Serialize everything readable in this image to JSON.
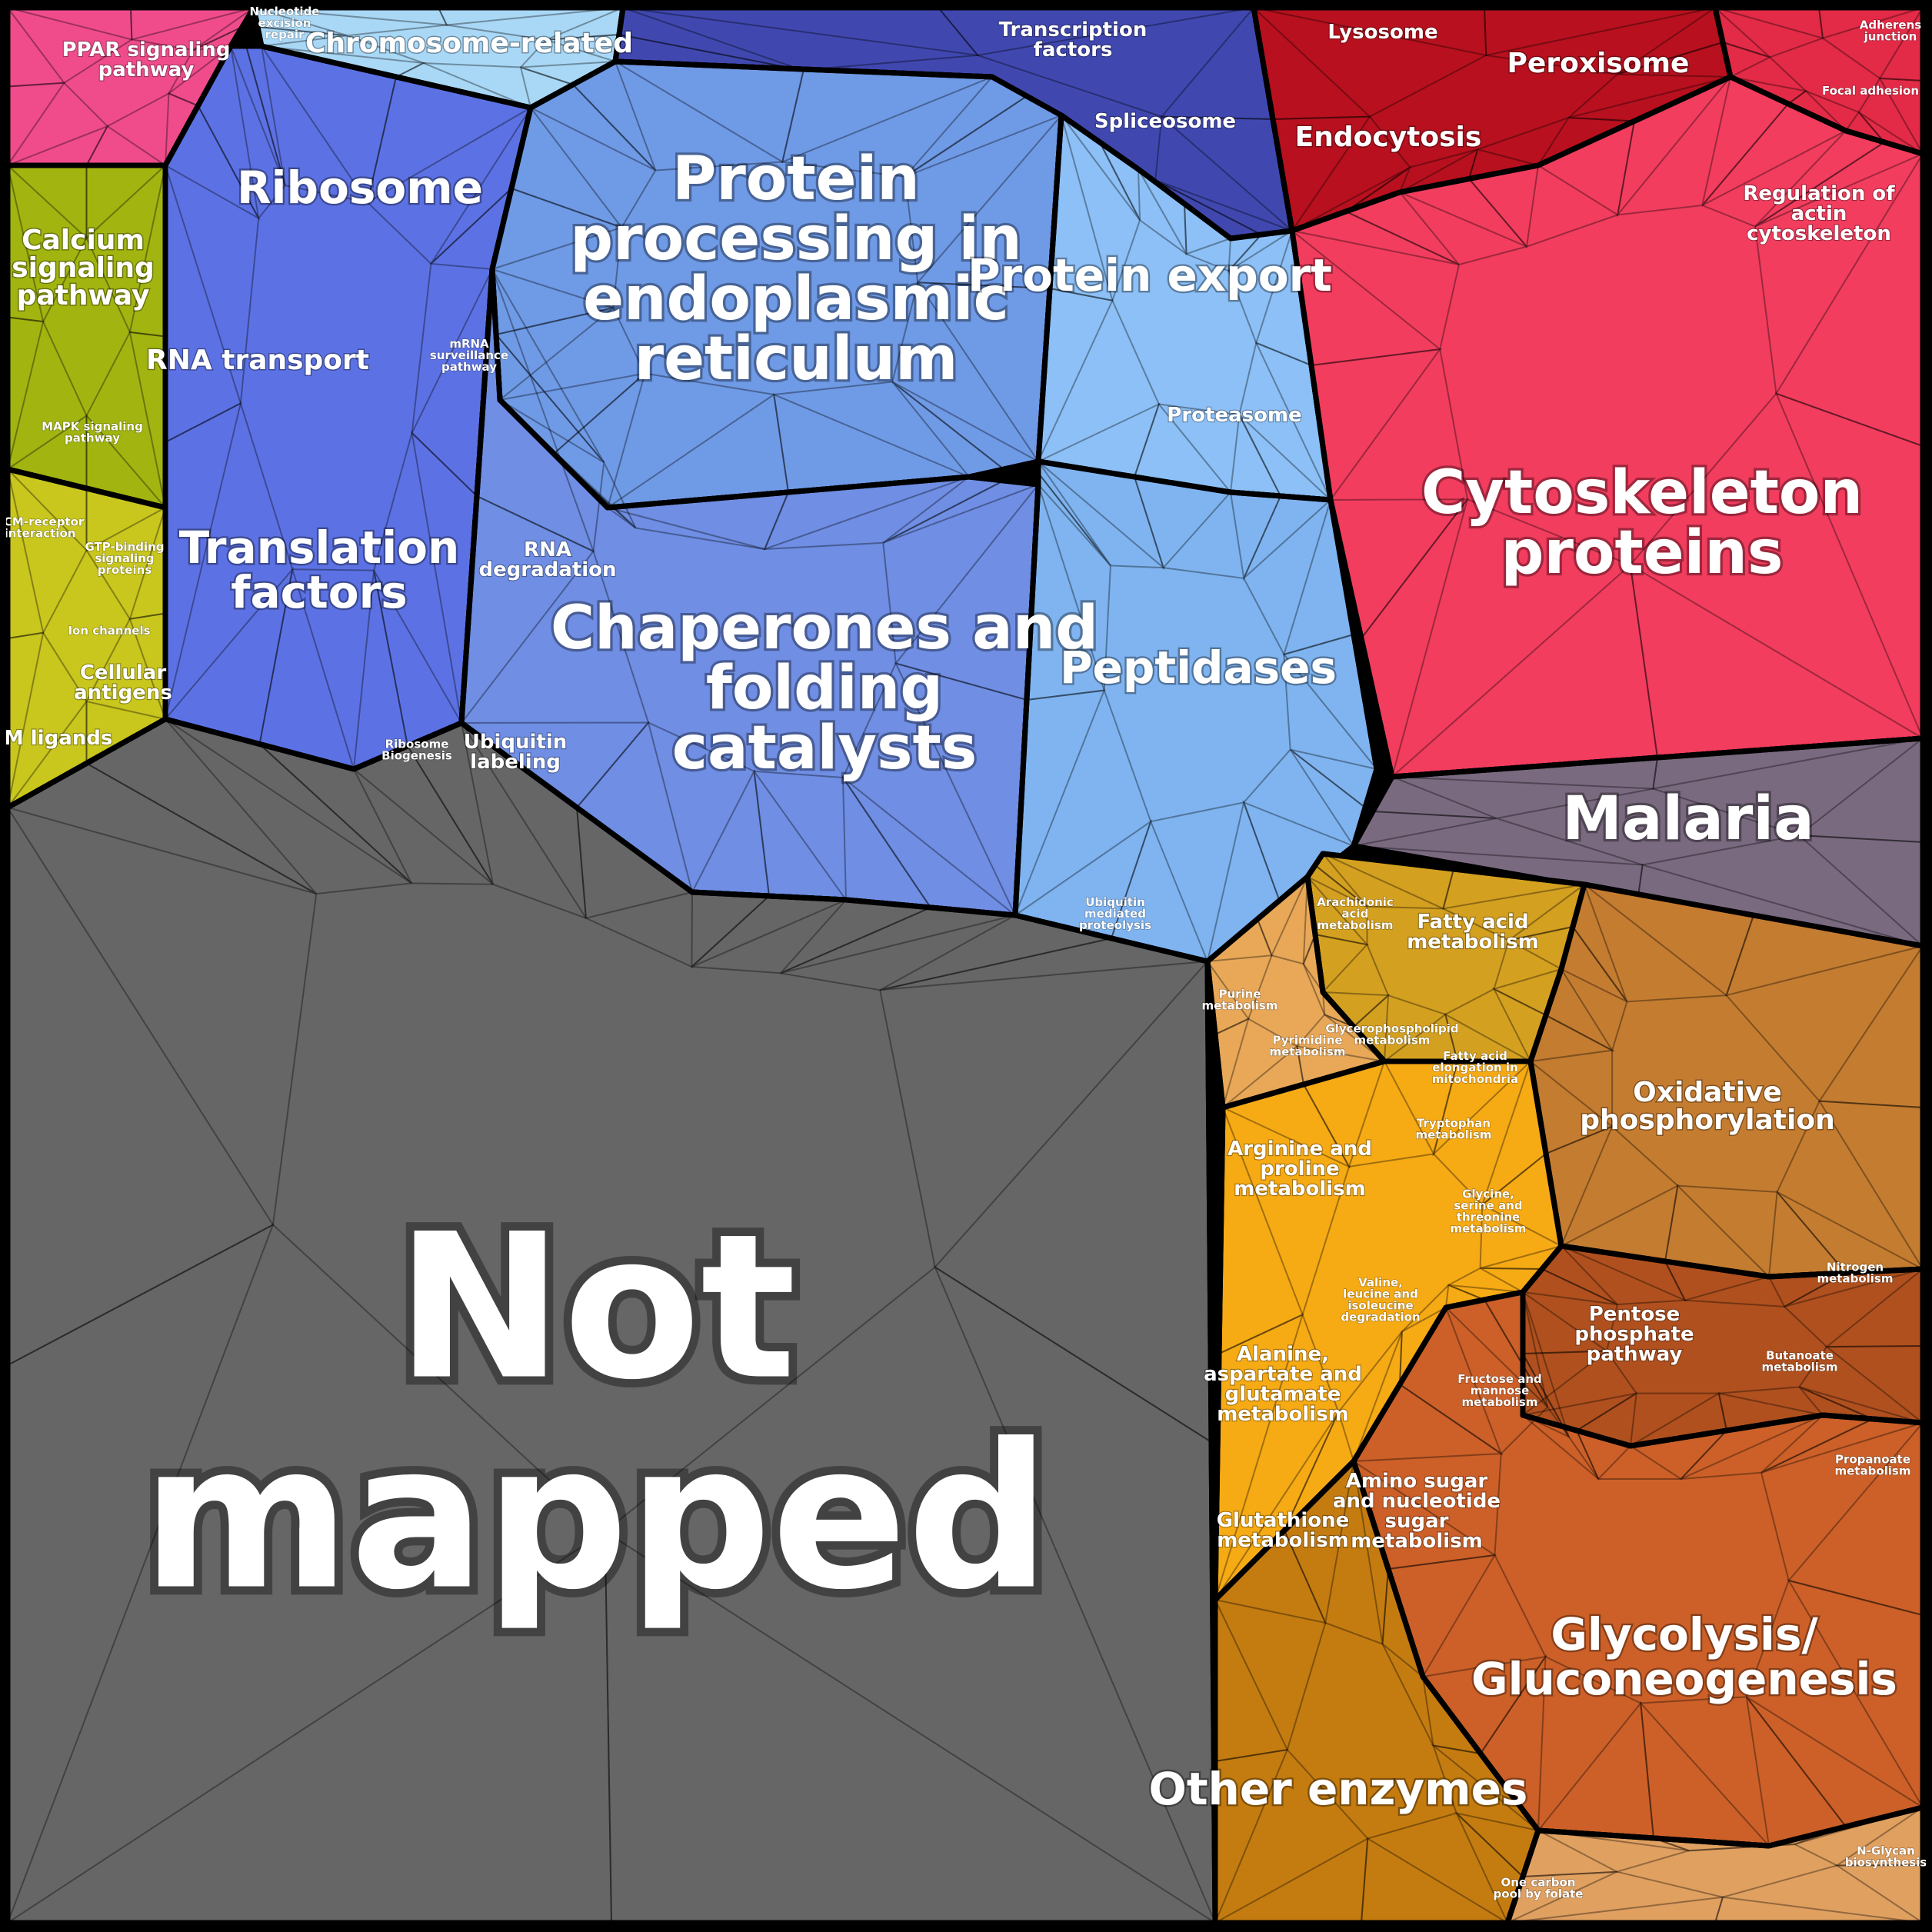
{
  "chart_data": {
    "type": "voronoi-treemap",
    "regions": [
      {
        "id": "pink",
        "color": "#f04c8c",
        "labels": [
          {
            "text": "PPAR signaling pathway",
            "size": "sm"
          }
        ]
      },
      {
        "id": "chromosome",
        "color": "#a9d8f6",
        "labels": [
          {
            "text": "Nucleotide excision repair",
            "size": "xs"
          },
          {
            "text": "Chromosome-related",
            "size": "md"
          }
        ]
      },
      {
        "id": "transcription",
        "color": "#4048b0",
        "labels": [
          {
            "text": "Transcription factors",
            "size": "sm"
          },
          {
            "text": "Spliceosome",
            "size": "sm"
          }
        ]
      },
      {
        "id": "ribosome",
        "color": "#5c72e4",
        "labels": [
          {
            "text": "Ribosome",
            "size": "lg"
          },
          {
            "text": "RNA transport",
            "size": "md"
          },
          {
            "text": "mRNA surveillance pathway",
            "size": "xs"
          },
          {
            "text": "Translation factors",
            "size": "lg"
          },
          {
            "text": "Ribosome Biogenesis",
            "size": "xs"
          }
        ]
      },
      {
        "id": "proteinproc",
        "color": "#6f9ae6",
        "labels": [
          {
            "text": "Protein processing in endoplasmic reticulum",
            "size": "xl"
          }
        ]
      },
      {
        "id": "export",
        "color": "#8cc0f6",
        "labels": [
          {
            "text": "Protein export",
            "size": "lg"
          },
          {
            "text": "Proteasome",
            "size": "sm"
          }
        ]
      },
      {
        "id": "chaperones",
        "color": "#6f8ee4",
        "labels": [
          {
            "text": "Chaperones and folding catalysts",
            "size": "xl"
          },
          {
            "text": "RNA degradation",
            "size": "sm"
          },
          {
            "text": "Ubiquitin labeling",
            "size": "sm"
          }
        ]
      },
      {
        "id": "peptidases",
        "color": "#7fb4f0",
        "labels": [
          {
            "text": "Peptidases",
            "size": "lg"
          },
          {
            "text": "Ubiquitin mediated proteolysis",
            "size": "xs"
          }
        ]
      },
      {
        "id": "calcium",
        "color": "#a2b410",
        "labels": [
          {
            "text": "Calcium signaling pathway",
            "size": "md"
          },
          {
            "text": "MAPK signaling pathway",
            "size": "xs"
          }
        ]
      },
      {
        "id": "ecm",
        "color": "#c9c61e",
        "labels": [
          {
            "text": "ECM-receptor interaction",
            "size": "xs"
          },
          {
            "text": "GTP-binding signaling proteins",
            "size": "xs"
          },
          {
            "text": "Ion channels",
            "size": "xs"
          },
          {
            "text": "Cellular antigens",
            "size": "sm"
          },
          {
            "text": "CAM ligands",
            "size": "sm"
          }
        ]
      },
      {
        "id": "lysosome",
        "color": "#b8101e",
        "labels": [
          {
            "text": "Lysosome",
            "size": "sm"
          },
          {
            "text": "Peroxisome",
            "size": "md"
          },
          {
            "text": "Endocytosis",
            "size": "md"
          }
        ]
      },
      {
        "id": "adherens",
        "color": "#e32a46",
        "labels": [
          {
            "text": "Adherens junction",
            "size": "xs"
          },
          {
            "text": "Focal adhesion",
            "size": "xs"
          },
          {
            "text": "Regulation of actin cytoskeleton",
            "size": "sm"
          }
        ]
      },
      {
        "id": "cytoskeleton",
        "color": "#f23d5e",
        "labels": [
          {
            "text": "Cytoskeleton proteins",
            "size": "xl"
          }
        ]
      },
      {
        "id": "malaria",
        "color": "#7a6a80",
        "labels": [
          {
            "text": "Malaria",
            "size": "xl"
          }
        ]
      },
      {
        "id": "notmapped",
        "color": "#666666",
        "labels": [
          {
            "text": "Not mapped",
            "size": "xxl"
          }
        ]
      },
      {
        "id": "fattyacid",
        "color": "#d4a020",
        "labels": [
          {
            "text": "Fatty acid metabolism",
            "size": "sm"
          },
          {
            "text": "Arachidonic acid metabolism",
            "size": "xs"
          },
          {
            "text": "Fatty acid elongation in mitochondria",
            "size": "xs"
          },
          {
            "text": "Glycerophospholipid metabolism",
            "size": "xs"
          }
        ]
      },
      {
        "id": "purine",
        "color": "#e8a858",
        "labels": [
          {
            "text": "Purine metabolism",
            "size": "xs"
          },
          {
            "text": "Pyrimidine metabolism",
            "size": "xs"
          }
        ]
      },
      {
        "id": "oxidative",
        "color": "#c47c30",
        "labels": [
          {
            "text": "Oxidative phosphorylation",
            "size": "md"
          },
          {
            "text": "Nitrogen metabolism",
            "size": "xs"
          }
        ]
      },
      {
        "id": "aminoacid",
        "color": "#f6aa14",
        "labels": [
          {
            "text": "Arginine and proline metabolism",
            "size": "sm"
          },
          {
            "text": "Tryptophan metabolism",
            "size": "xs"
          },
          {
            "text": "Glycine, serine and threonine metabolism",
            "size": "xs"
          },
          {
            "text": "Valine, leucine and isoleucine degradation",
            "size": "xs"
          },
          {
            "text": "Alanine, aspartate and glutamate metabolism",
            "size": "sm"
          },
          {
            "text": "Glutathione metabolism",
            "size": "sm"
          }
        ]
      },
      {
        "id": "pentose",
        "color": "#b0501e",
        "labels": [
          {
            "text": "Pentose phosphate pathway",
            "size": "sm"
          },
          {
            "text": "Fructose and mannose metabolism",
            "size": "xs"
          },
          {
            "text": "Butanoate metabolism",
            "size": "xs"
          },
          {
            "text": "Propanoate metabolism",
            "size": "xs"
          }
        ]
      },
      {
        "id": "glycolysis",
        "color": "#cc6028",
        "labels": [
          {
            "text": "Amino sugar and nucleotide sugar metabolism",
            "size": "sm"
          },
          {
            "text": "Glycolysis/ Gluconeogenesis",
            "size": "lg"
          }
        ]
      },
      {
        "id": "otherenz",
        "color": "#c47c10",
        "labels": [
          {
            "text": "Other enzymes",
            "size": "lg"
          }
        ]
      },
      {
        "id": "onecarbon",
        "color": "#e0a060",
        "labels": [
          {
            "text": "One carbon pool by folate",
            "size": "xs"
          },
          {
            "text": "N-Glycan biosynthesis",
            "size": "xs"
          }
        ]
      }
    ]
  }
}
